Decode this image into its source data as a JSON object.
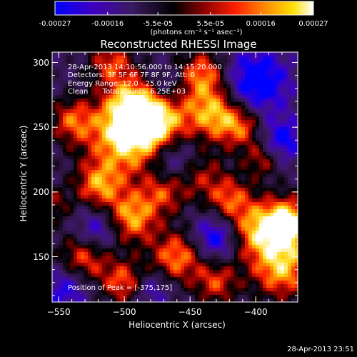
{
  "colorbar": {
    "ticks": [
      "-0.00027",
      "-0.00016",
      "-5.5e-05",
      "5.5e-05",
      "0.00016",
      "0.00027"
    ],
    "tick_values": [
      -0.00027,
      -0.00016,
      -5.5e-05,
      5.5e-05,
      0.00016,
      0.00027
    ],
    "unit_label": "(photons cm⁻² s⁻¹ asec⁻²)",
    "range": [
      -0.00027,
      0.00027
    ],
    "colors": [
      "#0000ff",
      "#5000a0",
      "#3a1a50",
      "#000000",
      "#8a0000",
      "#ff2000",
      "#ff8c00",
      "#ffe000",
      "#ffffff"
    ]
  },
  "chart_data": {
    "type": "heatmap",
    "title": "Reconstructed RHESSI Image",
    "xlabel": "Heliocentric X (arcsec)",
    "ylabel": "Heliocentric Y (arcsec)",
    "xlim": [
      -555,
      -368
    ],
    "ylim": [
      115,
      308
    ],
    "x_ticks": [
      -550,
      -500,
      -450,
      -400
    ],
    "y_ticks": [
      150,
      200,
      250,
      300
    ],
    "annotations": {
      "time": "28-Apr-2013 14:10:56.000 to 14:15:20.000",
      "detectors": "Detectors: 3F 5F 6F 7F 8F 9F, Att: 0",
      "energy": "Energy Range: 12.0 - 25.0 keV",
      "method": "Clean",
      "counts": "Total counts: 6.25E+03",
      "peak": "Position of Peak = [-375,175]"
    },
    "peak_position": [
      -375,
      175
    ],
    "grid": false
  },
  "footer": {
    "timestamp": "28-Apr-2013 23:51"
  }
}
